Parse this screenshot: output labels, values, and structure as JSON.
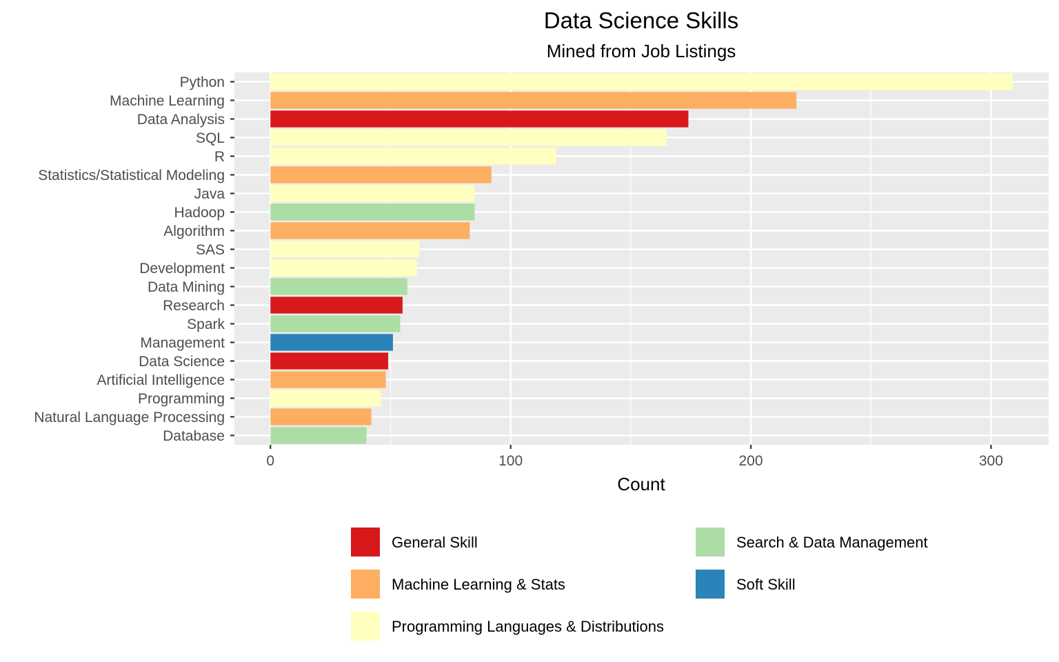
{
  "chart_data": {
    "type": "bar",
    "orientation": "horizontal",
    "title": "Data Science Skills",
    "subtitle": "Mined from Job Listings",
    "xlabel": "Count",
    "ylabel": "",
    "xlim": [
      -15,
      324
    ],
    "xticks": [
      0,
      100,
      200,
      300
    ],
    "grid": true,
    "legend_position": "bottom",
    "categories": [
      "Python",
      "Machine Learning",
      "Data Analysis",
      "SQL",
      "R",
      "Statistics/Statistical Modeling",
      "Java",
      "Hadoop",
      "Algorithm",
      "SAS",
      "Development",
      "Data Mining",
      "Research",
      "Spark",
      "Management",
      "Data Science",
      "Artificial Intelligence",
      "Programming",
      "Natural Language Processing",
      "Database"
    ],
    "values": [
      309,
      219,
      174,
      165,
      119,
      92,
      85,
      85,
      83,
      62,
      61,
      57,
      55,
      54,
      51,
      49,
      48,
      46,
      42,
      40
    ],
    "groups": [
      "Programming Languages & Distributions",
      "Machine Learning & Stats",
      "General Skill",
      "Programming Languages & Distributions",
      "Programming Languages & Distributions",
      "Machine Learning & Stats",
      "Programming Languages & Distributions",
      "Search & Data Management",
      "Machine Learning & Stats",
      "Programming Languages & Distributions",
      "Programming Languages & Distributions",
      "Search & Data Management",
      "General Skill",
      "Search & Data Management",
      "Soft Skill",
      "General Skill",
      "Machine Learning & Stats",
      "Programming Languages & Distributions",
      "Machine Learning & Stats",
      "Search & Data Management"
    ],
    "legend": [
      {
        "name": "General Skill",
        "color": "#d7191c"
      },
      {
        "name": "Machine Learning & Stats",
        "color": "#fdae61"
      },
      {
        "name": "Programming Languages & Distributions",
        "color": "#ffffbf"
      },
      {
        "name": "Search & Data Management",
        "color": "#abdda4"
      },
      {
        "name": "Soft Skill",
        "color": "#2b83ba"
      }
    ],
    "panel_color": "#ebebeb",
    "grid_color": "#ffffff"
  }
}
